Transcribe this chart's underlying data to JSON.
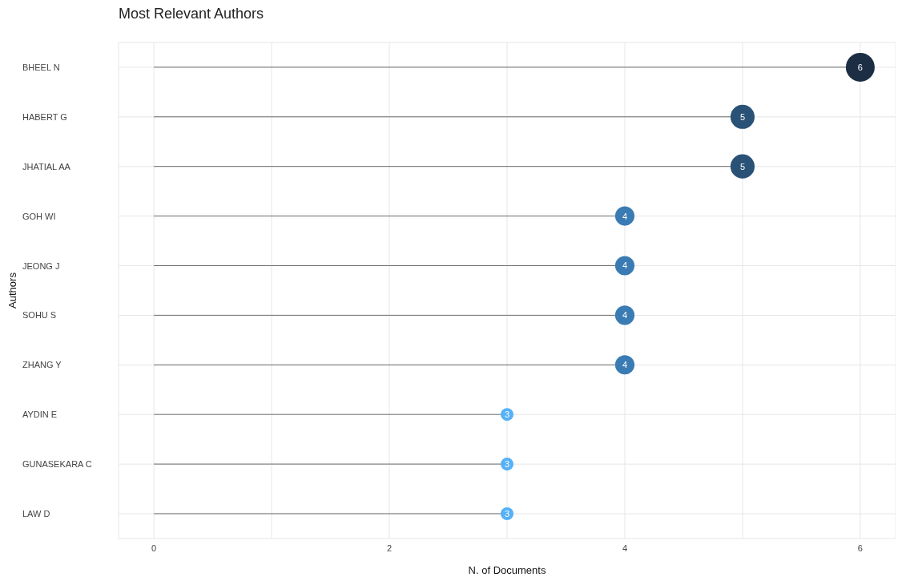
{
  "chart_data": {
    "type": "lollipop",
    "orientation": "horizontal",
    "title": "Most Relevant Authors",
    "xlabel": "N. of Documents",
    "ylabel": "Authors",
    "categories": [
      "BHEEL N",
      "HABERT G",
      "JHATIAL AA",
      "GOH WI",
      "JEONG J",
      "SOHU S",
      "ZHANG Y",
      "AYDIN E",
      "GUNASEKARA C",
      "LAW D"
    ],
    "values": [
      6,
      5,
      5,
      4,
      4,
      4,
      4,
      3,
      3,
      3
    ],
    "sizes": [
      1,
      0.7,
      0.7,
      0.45,
      0.45,
      0.45,
      0.45,
      0.2,
      0.2,
      0.2
    ],
    "colors": [
      "#1b2e44",
      "#2a5276",
      "#2a5276",
      "#3a7bb4",
      "#3a7bb4",
      "#3a7bb4",
      "#3a7bb4",
      "#56b1f7",
      "#56b1f7",
      "#56b1f7"
    ],
    "xlim": [
      -0.3,
      6.3
    ],
    "xticks": [
      0,
      {
        "value": 1,
        "label": null
      },
      2,
      {
        "value": 3,
        "label": null
      },
      4,
      {
        "value": 5,
        "label": null
      },
      6
    ],
    "grid": true,
    "data_labels": true
  }
}
